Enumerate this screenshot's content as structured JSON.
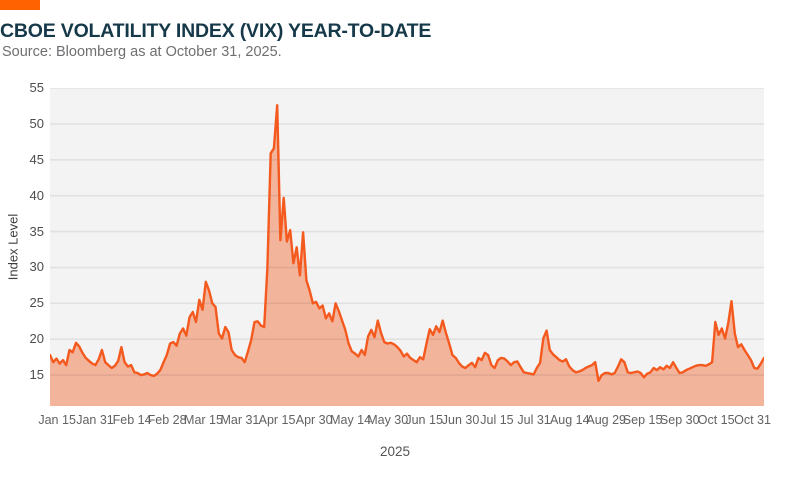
{
  "header": {
    "title": "CBOE VOLATILITY INDEX (VIX) YEAR-TO-DATE",
    "source": "Source: Bloomberg as at October 31, 2025.",
    "accent_color": "#FF6200"
  },
  "chart_data": {
    "type": "area",
    "title": "CBOE VOLATILITY INDEX (VIX) YEAR-TO-DATE",
    "subtitle": "Source: Bloomberg as at October 31, 2025.",
    "xlabel": "2025",
    "ylabel": "Index Level",
    "ylim": [
      10.7,
      55
    ],
    "yticks": [
      15,
      20,
      25,
      30,
      35,
      40,
      45,
      50,
      55
    ],
    "grid": true,
    "legend": false,
    "line_color": "#F4591E",
    "fill_color": "#F3B49C",
    "plot_bg": "#F3F3F3",
    "grid_color": "#00000012",
    "x_ticks": [
      {
        "label": "Jan 15",
        "pos": 0.01
      },
      {
        "label": "Jan 31",
        "pos": 0.063
      },
      {
        "label": "Feb 14",
        "pos": 0.115
      },
      {
        "label": "Feb 28",
        "pos": 0.164
      },
      {
        "label": "Mar 15",
        "pos": 0.215
      },
      {
        "label": "Mar 31",
        "pos": 0.266
      },
      {
        "label": "Apr 15",
        "pos": 0.318
      },
      {
        "label": "Apr 30",
        "pos": 0.37
      },
      {
        "label": "May 14",
        "pos": 0.421
      },
      {
        "label": "May 30",
        "pos": 0.473
      },
      {
        "label": "Jun 15",
        "pos": 0.524
      },
      {
        "label": "Jun 30",
        "pos": 0.575
      },
      {
        "label": "Jul 15",
        "pos": 0.626
      },
      {
        "label": "Jul 31",
        "pos": 0.678
      },
      {
        "label": "Aug 14",
        "pos": 0.728
      },
      {
        "label": "Aug 29",
        "pos": 0.779
      },
      {
        "label": "Sep 15",
        "pos": 0.83
      },
      {
        "label": "Sep 30",
        "pos": 0.882
      },
      {
        "label": "Oct 15",
        "pos": 0.933
      },
      {
        "label": "Oct 31",
        "pos": 0.984
      }
    ],
    "values": [
      17.8,
      16.8,
      17.3,
      16.6,
      17.1,
      16.4,
      18.5,
      18.2,
      19.5,
      19.0,
      18.1,
      17.4,
      17.0,
      16.6,
      16.4,
      17.2,
      18.5,
      16.8,
      16.4,
      16.0,
      16.3,
      17.0,
      18.9,
      16.8,
      16.2,
      16.4,
      15.4,
      15.3,
      15.0,
      15.1,
      15.3,
      15.0,
      14.9,
      15.2,
      15.7,
      16.8,
      17.8,
      19.4,
      19.6,
      19.1,
      20.8,
      21.5,
      20.5,
      23.1,
      23.8,
      22.4,
      25.5,
      24.1,
      28.0,
      26.8,
      25.0,
      24.5,
      20.8,
      20.1,
      21.7,
      21.0,
      18.5,
      17.8,
      17.5,
      17.4,
      16.8,
      18.3,
      19.9,
      22.4,
      22.5,
      21.9,
      21.7,
      30.0,
      45.9,
      46.6,
      52.6,
      33.8,
      39.7,
      33.6,
      35.2,
      30.6,
      32.8,
      28.9,
      34.9,
      28.2,
      26.8,
      25.0,
      25.2,
      24.3,
      24.7,
      22.9,
      23.6,
      22.5,
      25.0,
      23.9,
      22.6,
      21.3,
      19.4,
      18.3,
      18.0,
      17.6,
      18.5,
      17.8,
      20.4,
      21.3,
      20.3,
      22.6,
      20.9,
      19.6,
      19.4,
      19.5,
      19.3,
      18.9,
      18.4,
      17.6,
      18.0,
      17.4,
      17.1,
      16.8,
      17.5,
      17.2,
      19.4,
      21.4,
      20.6,
      21.8,
      21.0,
      22.6,
      20.9,
      19.4,
      17.8,
      17.4,
      16.7,
      16.2,
      16.0,
      16.4,
      16.7,
      16.1,
      17.4,
      17.1,
      18.1,
      17.8,
      16.4,
      16.0,
      17.1,
      17.4,
      17.3,
      16.9,
      16.4,
      16.8,
      16.9,
      16.1,
      15.4,
      15.3,
      15.2,
      15.1,
      16.0,
      16.7,
      20.1,
      21.2,
      18.5,
      17.9,
      17.5,
      17.1,
      16.9,
      17.2,
      16.2,
      15.7,
      15.4,
      15.5,
      15.7,
      16.0,
      16.2,
      16.4,
      16.8,
      14.2,
      15.0,
      15.3,
      15.3,
      15.1,
      15.3,
      16.2,
      17.2,
      16.8,
      15.4,
      15.3,
      15.4,
      15.5,
      15.3,
      14.7,
      15.2,
      15.4,
      16.0,
      15.7,
      16.1,
      15.8,
      16.3,
      16.0,
      16.8,
      16.0,
      15.3,
      15.4,
      15.7,
      15.9,
      16.1,
      16.3,
      16.4,
      16.4,
      16.3,
      16.5,
      16.8,
      22.4,
      20.6,
      21.5,
      20.1,
      22.3,
      25.3,
      20.8,
      18.9,
      19.3,
      18.5,
      17.8,
      17.1,
      16.0,
      15.9,
      16.6,
      17.4
    ]
  }
}
